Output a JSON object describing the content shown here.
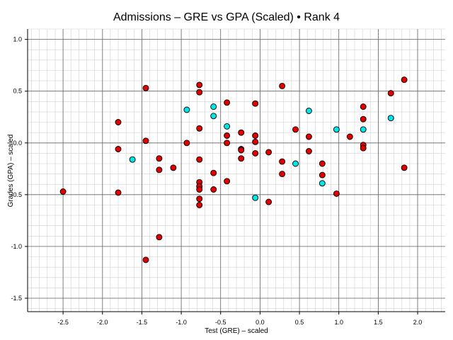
{
  "chart_data": {
    "type": "scatter",
    "title": "Admissions – GRE vs GPA (Scaled) • Rank 4",
    "xlabel": "Test (GRE) – scaled",
    "ylabel": "Grades (GPA) – scaled",
    "xlim": [
      -2.95,
      2.35
    ],
    "ylim": [
      -1.63,
      1.1
    ],
    "x_ticks": [
      -2.5,
      -2.0,
      -1.5,
      -1.0,
      -0.5,
      0.0,
      0.5,
      1.0,
      1.5,
      2.0
    ],
    "x_tick_labels": [
      "-2.5",
      "-2.0",
      "-1.5",
      "-1.0",
      "-0.5",
      "0.0",
      "0.5",
      "1.0",
      "1.5",
      "2.0"
    ],
    "y_ticks": [
      -1.5,
      -1.0,
      -0.5,
      0.0,
      0.5,
      1.0
    ],
    "y_tick_labels": [
      "-1.5",
      "-1.0",
      "-0.5",
      "0.0",
      "0.5",
      "1.0"
    ],
    "grid": true,
    "minor_grid": true,
    "legend": "none",
    "colors": {
      "red": "#e00000",
      "cyan": "#00e5e5",
      "edge": "#000000",
      "major_grid": "#666666",
      "minor_grid": "#d0d0d0"
    },
    "series": [
      {
        "color": "red",
        "points": [
          [
            -2.5,
            -0.47
          ],
          [
            -1.8,
            0.2
          ],
          [
            -1.8,
            -0.06
          ],
          [
            -1.8,
            -0.48
          ],
          [
            -1.45,
            0.53
          ],
          [
            -1.45,
            0.02
          ],
          [
            -1.45,
            -1.13
          ],
          [
            -1.28,
            -0.15
          ],
          [
            -1.28,
            -0.26
          ],
          [
            -1.28,
            -0.91
          ],
          [
            -1.1,
            -0.24
          ],
          [
            -0.93,
            0.0
          ],
          [
            -0.77,
            0.56
          ],
          [
            -0.77,
            0.49
          ],
          [
            -0.77,
            0.14
          ],
          [
            -0.77,
            -0.16
          ],
          [
            -0.77,
            -0.38
          ],
          [
            -0.77,
            -0.42
          ],
          [
            -0.77,
            -0.45
          ],
          [
            -0.77,
            -0.54
          ],
          [
            -0.77,
            -0.6
          ],
          [
            -0.59,
            -0.29
          ],
          [
            -0.59,
            -0.45
          ],
          [
            -0.42,
            0.39
          ],
          [
            -0.42,
            0.07
          ],
          [
            -0.42,
            0.0
          ],
          [
            -0.42,
            -0.37
          ],
          [
            -0.24,
            0.1
          ],
          [
            -0.24,
            -0.06
          ],
          [
            -0.24,
            -0.07
          ],
          [
            -0.24,
            -0.15
          ],
          [
            -0.06,
            0.38
          ],
          [
            -0.06,
            0.07
          ],
          [
            -0.06,
            0.01
          ],
          [
            -0.06,
            -0.1
          ],
          [
            0.11,
            -0.09
          ],
          [
            0.11,
            -0.57
          ],
          [
            0.28,
            0.55
          ],
          [
            0.28,
            -0.18
          ],
          [
            0.28,
            -0.3
          ],
          [
            0.45,
            0.13
          ],
          [
            0.62,
            0.06
          ],
          [
            0.62,
            -0.08
          ],
          [
            0.79,
            -0.2
          ],
          [
            0.79,
            -0.31
          ],
          [
            0.97,
            -0.49
          ],
          [
            1.14,
            0.06
          ],
          [
            1.31,
            0.35
          ],
          [
            1.31,
            0.23
          ],
          [
            1.31,
            -0.02
          ],
          [
            1.31,
            -0.05
          ],
          [
            1.66,
            0.48
          ],
          [
            1.83,
            0.61
          ],
          [
            1.83,
            -0.24
          ]
        ]
      },
      {
        "color": "cyan",
        "points": [
          [
            -1.62,
            -0.16
          ],
          [
            -0.93,
            0.32
          ],
          [
            -0.59,
            0.35
          ],
          [
            -0.59,
            0.26
          ],
          [
            -0.42,
            0.16
          ],
          [
            -0.06,
            -0.53
          ],
          [
            0.45,
            -0.2
          ],
          [
            0.62,
            0.31
          ],
          [
            0.79,
            -0.39
          ],
          [
            0.97,
            0.13
          ],
          [
            1.31,
            0.13
          ],
          [
            1.66,
            0.24
          ]
        ]
      }
    ]
  }
}
